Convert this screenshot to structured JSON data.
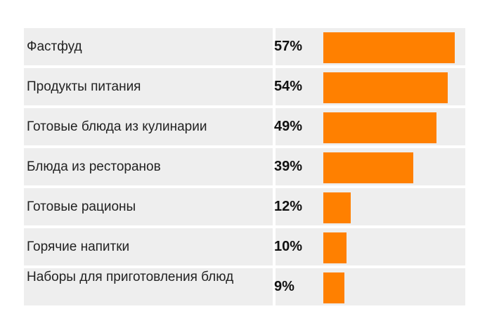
{
  "chart_data": {
    "type": "bar",
    "orientation": "horizontal",
    "categories": [
      "Фастфуд",
      "Продукты питания",
      "Готовые блюда из кулинарии",
      "Блюда из ресторанов",
      "Готовые рационы",
      "Горячие напитки",
      "Наборы для приготовления блюд"
    ],
    "values": [
      57,
      54,
      49,
      39,
      12,
      10,
      9
    ],
    "value_labels": [
      "57%",
      "54%",
      "49%",
      "39%",
      "12%",
      "10%",
      "9%"
    ],
    "bar_color": "#ff8000",
    "xlim": [
      0,
      57
    ],
    "grid": false
  }
}
